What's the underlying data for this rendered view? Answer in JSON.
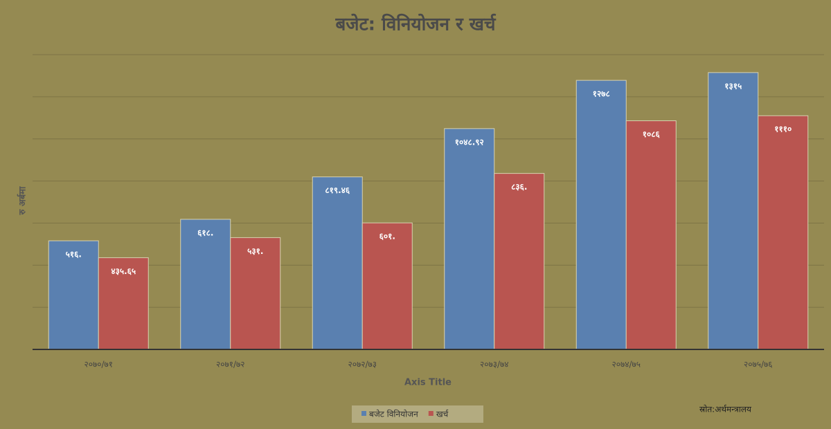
{
  "chart_data": {
    "type": "bar",
    "title": "बजेट: विनियोजन र खर्च",
    "y_label": "रु अर्बमा",
    "x_label": "Axis Title",
    "source": "स्रोत:अर्थमन्त्रालय",
    "categories": [
      "२०७०/७१",
      "२०७१/७२",
      "२०७२/७३",
      "२०७३/७४",
      "२०७४/७५",
      "२०७५/७६"
    ],
    "series": [
      {
        "name": "बजेट विनियोजन",
        "color": "#5a80b0",
        "values": [
          516,
          618,
          819.46,
          1048.92,
          1278,
          1315
        ],
        "value_labels": [
          "५१६.",
          "६१८.",
          "८१९.४६",
          "१०४८.९२",
          "१२७८",
          "१३१५"
        ]
      },
      {
        "name": "खर्च",
        "color": "#b95550",
        "values": [
          435.65,
          531,
          601,
          836,
          1086,
          1110
        ],
        "value_labels": [
          "४३५.६५",
          "५३१.",
          "६०१.",
          "८३६.",
          "१०८६",
          "१११०"
        ]
      }
    ],
    "ylim": [
      0,
      1400
    ],
    "yticks": [
      0,
      200,
      400,
      600,
      800,
      1000,
      1200,
      1400
    ],
    "grid": true
  }
}
